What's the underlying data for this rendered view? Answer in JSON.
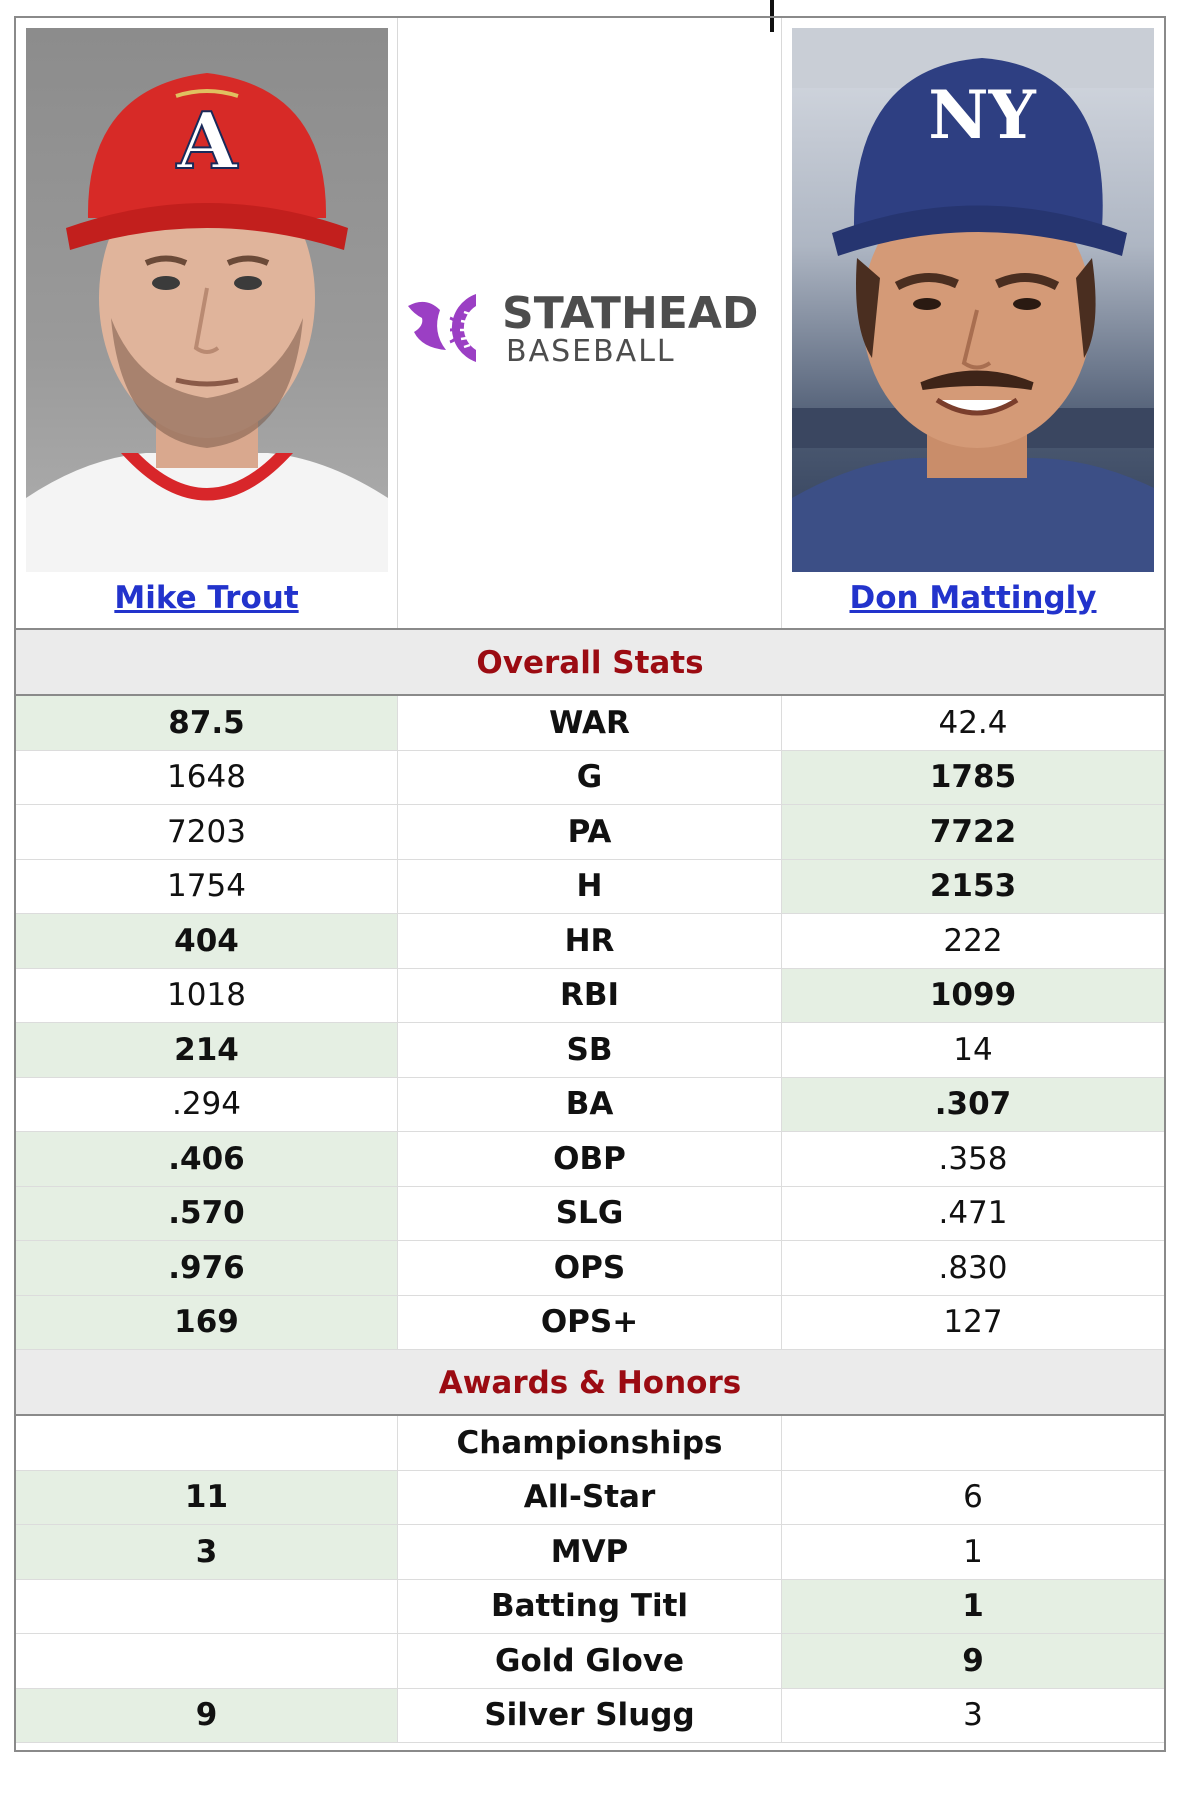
{
  "players": {
    "left": {
      "name": "Mike Trout"
    },
    "right": {
      "name": "Don Mattingly"
    }
  },
  "logo": {
    "line1": "STATHEAD",
    "line2": "BASEBALL"
  },
  "sections": {
    "overall": "Overall Stats",
    "awards": "Awards & Honors"
  },
  "overall_rows": [
    {
      "label": "WAR",
      "left": "87.5",
      "right": "42.4",
      "winner": "left"
    },
    {
      "label": "G",
      "left": "1648",
      "right": "1785",
      "winner": "right"
    },
    {
      "label": "PA",
      "left": "7203",
      "right": "7722",
      "winner": "right"
    },
    {
      "label": "H",
      "left": "1754",
      "right": "2153",
      "winner": "right"
    },
    {
      "label": "HR",
      "left": "404",
      "right": "222",
      "winner": "left"
    },
    {
      "label": "RBI",
      "left": "1018",
      "right": "1099",
      "winner": "right"
    },
    {
      "label": "SB",
      "left": "214",
      "right": "14",
      "winner": "left"
    },
    {
      "label": "BA",
      "left": ".294",
      "right": ".307",
      "winner": "right"
    },
    {
      "label": "OBP",
      "left": ".406",
      "right": ".358",
      "winner": "left"
    },
    {
      "label": "SLG",
      "left": ".570",
      "right": ".471",
      "winner": "left"
    },
    {
      "label": "OPS",
      "left": ".976",
      "right": ".830",
      "winner": "left"
    },
    {
      "label": "OPS+",
      "left": "169",
      "right": "127",
      "winner": "left"
    }
  ],
  "award_rows": [
    {
      "label": "Championships",
      "left": "",
      "right": "",
      "winner": "none"
    },
    {
      "label": "All-Star",
      "left": "11",
      "right": "6",
      "winner": "left"
    },
    {
      "label": "MVP",
      "left": "3",
      "right": "1",
      "winner": "left"
    },
    {
      "label": "Batting Titl",
      "left": "",
      "right": "1",
      "winner": "right"
    },
    {
      "label": "Gold Glove",
      "left": "",
      "right": "9",
      "winner": "right"
    },
    {
      "label": "Silver Slugg",
      "left": "9",
      "right": "3",
      "winner": "left"
    }
  ],
  "colors": {
    "accent_red": "#9b0b12",
    "link_blue": "#2233cc",
    "winner_bg": "#e5efe3",
    "logo_purple": "#9b3fc4"
  }
}
